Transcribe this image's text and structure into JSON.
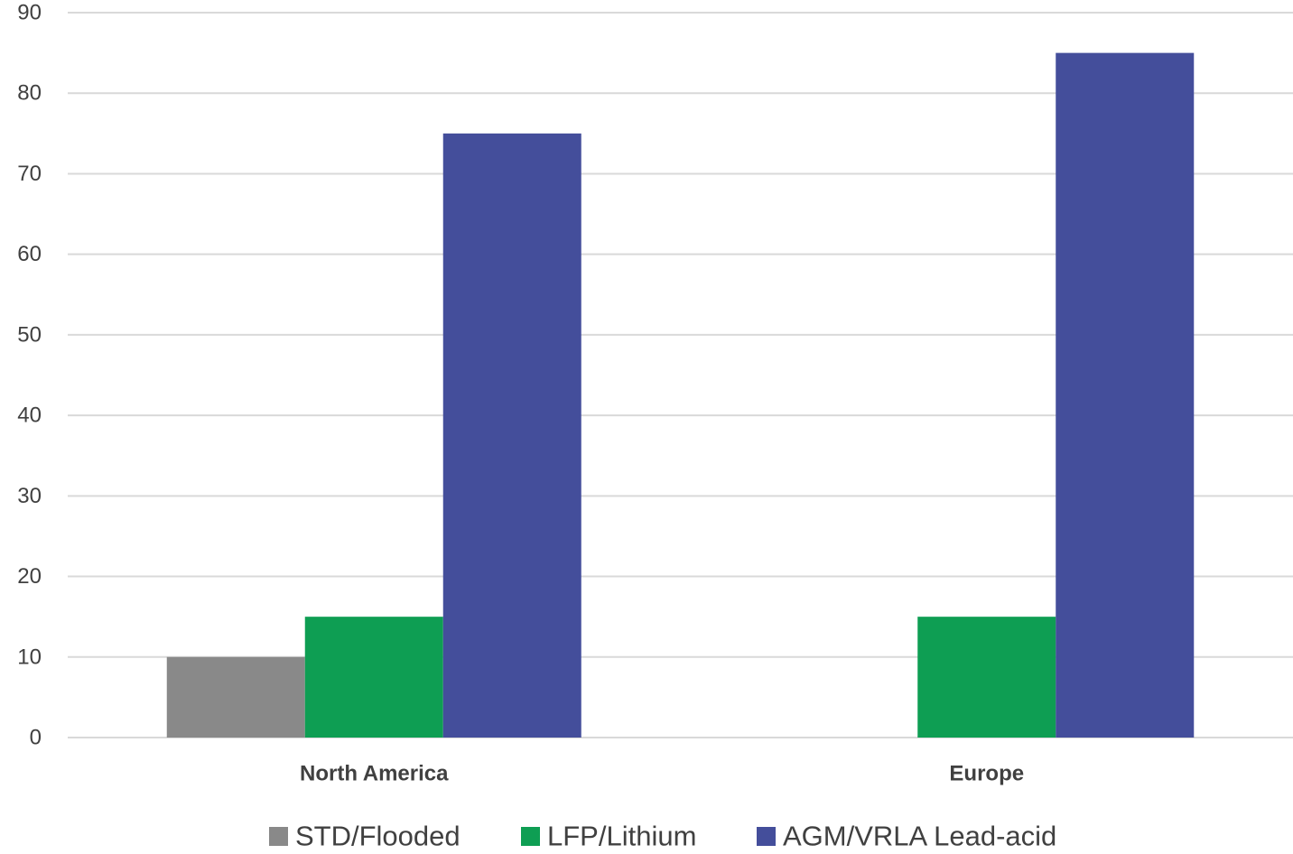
{
  "chart_data": {
    "type": "bar",
    "title": "",
    "xlabel": "",
    "ylabel": "",
    "categories": [
      "North America",
      "Europe"
    ],
    "series": [
      {
        "name": "STD/Flooded",
        "values": [
          10,
          null
        ],
        "color": "#898989"
      },
      {
        "name": "LFP/Lithium",
        "values": [
          15,
          15
        ],
        "color": "#0e9e53"
      },
      {
        "name": "AGM/VRLA Lead-acid",
        "values": [
          75,
          85
        ],
        "color": "#444e9b"
      }
    ],
    "ylim": [
      0,
      90
    ],
    "yticks": [
      "0",
      "10",
      "20",
      "30",
      "40",
      "50",
      "60",
      "70",
      "80",
      "90"
    ],
    "grid": true,
    "legend_position": "bottom",
    "gridline_color": "#d9d9d9"
  }
}
